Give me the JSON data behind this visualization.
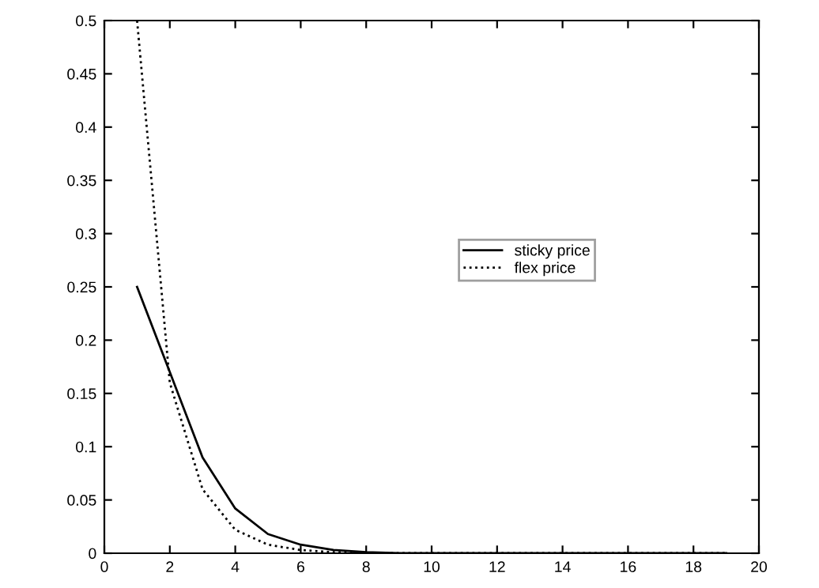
{
  "chart_data": {
    "type": "line",
    "x": [
      1,
      2,
      3,
      4,
      5,
      6,
      7,
      8,
      9,
      10,
      11,
      12,
      13,
      14,
      15,
      16,
      17,
      18,
      19
    ],
    "series": [
      {
        "name": "sticky price",
        "color": "#000000",
        "line_style": "solid",
        "values": [
          0.25,
          0.17,
          0.09,
          0.042,
          0.018,
          0.008,
          0.003,
          0.001,
          0,
          0,
          0,
          0,
          0,
          0,
          0,
          0,
          0,
          0,
          0
        ]
      },
      {
        "name": "flex price",
        "color": "#000000",
        "line_style": "dotted",
        "values": [
          0.5,
          0.16,
          0.06,
          0.022,
          0.008,
          0.003,
          0.001,
          0,
          0,
          0,
          0,
          0,
          0,
          0,
          0,
          0,
          0,
          0,
          0
        ]
      }
    ],
    "xlim": [
      0,
      20
    ],
    "xticks": [
      0,
      2,
      4,
      6,
      8,
      10,
      12,
      14,
      16,
      18,
      20
    ],
    "ylim": [
      0,
      0.5
    ],
    "yticks": [
      0,
      0.05,
      0.1,
      0.15,
      0.2,
      0.25,
      0.3,
      0.35,
      0.4,
      0.45,
      0.5
    ],
    "grid": false,
    "legend": "right",
    "marker": "none"
  }
}
